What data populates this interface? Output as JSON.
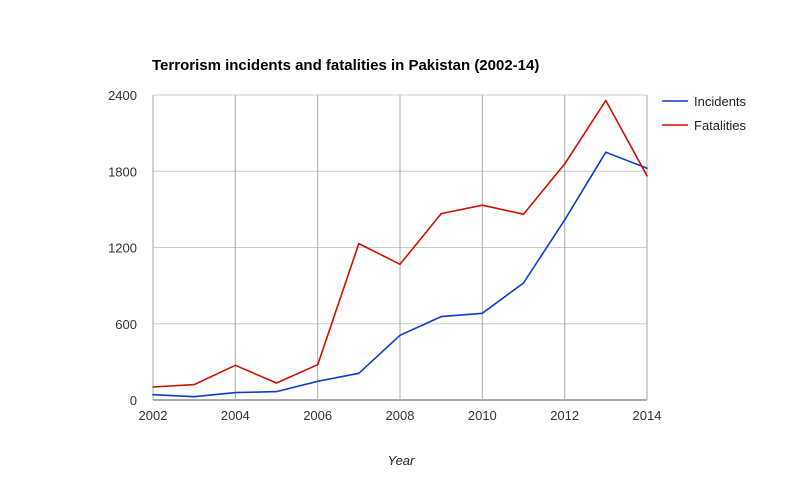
{
  "chart_data": {
    "type": "line",
    "title": "Terrorism incidents and fatalities in Pakistan (2002-14)",
    "xlabel": "Year",
    "ylabel": "",
    "x": [
      2002,
      2003,
      2004,
      2005,
      2006,
      2007,
      2008,
      2009,
      2010,
      2011,
      2012,
      2013,
      2014
    ],
    "xticks": [
      "2002",
      "2004",
      "2006",
      "2008",
      "2010",
      "2012",
      "2014"
    ],
    "yticks": [
      "0",
      "600",
      "1200",
      "1800",
      "2400"
    ],
    "ylim": [
      0,
      2400
    ],
    "xlim": [
      2002,
      2014
    ],
    "grid": true,
    "legend_position": "right",
    "series": [
      {
        "name": "Incidents",
        "color": "#0b3fc8",
        "values": [
          42,
          26,
          58,
          66,
          147,
          210,
          509,
          656,
          682,
          921,
          1417,
          1950,
          1824
        ]
      },
      {
        "name": "Fatalities",
        "color": "#cc1100",
        "values": [
          102,
          121,
          273,
          134,
          278,
          1231,
          1068,
          1467,
          1533,
          1462,
          1858,
          2357,
          1764
        ]
      }
    ]
  }
}
